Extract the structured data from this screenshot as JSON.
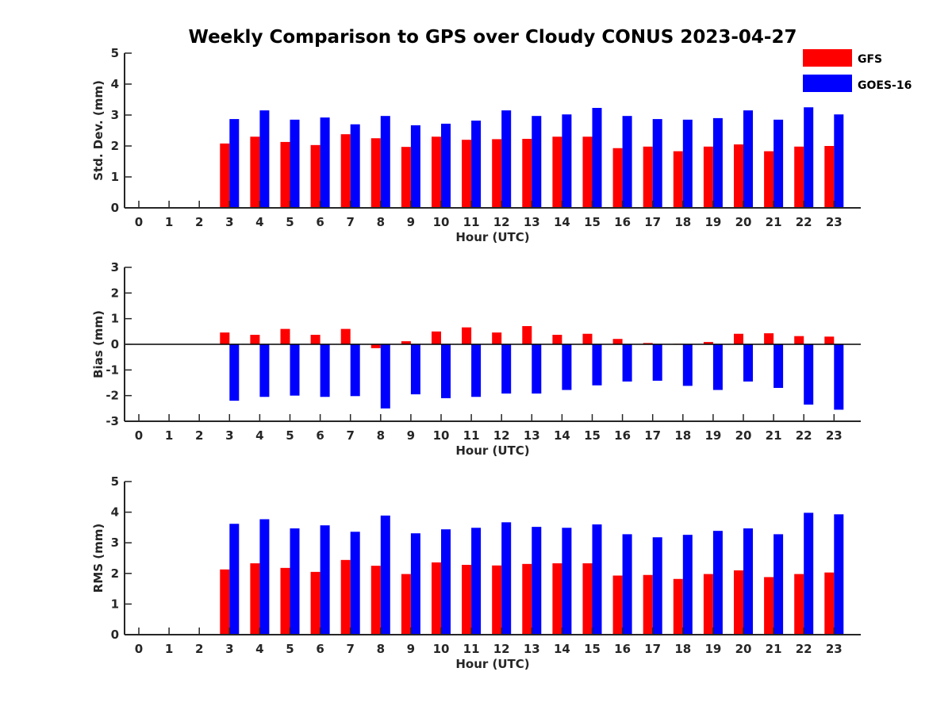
{
  "chart_data": {
    "title": "Weekly Comparison to GPS over Cloudy CONUS 2023-04-27",
    "legend": {
      "position": "top-right",
      "entries": [
        {
          "name": "GFS",
          "color": "#ff0000"
        },
        {
          "name": "GOES-16",
          "color": "#0000ff"
        }
      ]
    },
    "panels": [
      {
        "type": "bar",
        "ylabel": "Std. Dev. (mm)",
        "xlabel": "Hour (UTC)",
        "ylim": [
          0,
          5
        ],
        "yticks": [
          "0",
          "1",
          "2",
          "3",
          "4",
          "5"
        ],
        "categories": [
          "0",
          "1",
          "2",
          "3",
          "4",
          "5",
          "6",
          "7",
          "8",
          "9",
          "10",
          "11",
          "12",
          "13",
          "14",
          "15",
          "16",
          "17",
          "18",
          "19",
          "20",
          "21",
          "22",
          "23"
        ],
        "series": [
          {
            "name": "GFS",
            "color": "#ff0000",
            "values": [
              null,
              null,
              null,
              2.08,
              2.3,
              2.13,
              2.03,
              2.38,
              2.25,
              1.97,
              2.3,
              2.2,
              2.22,
              2.23,
              2.3,
              2.3,
              1.93,
              1.98,
              1.83,
              1.98,
              2.05,
              1.83,
              1.98,
              2.0
            ]
          },
          {
            "name": "GOES-16",
            "color": "#0000ff",
            "values": [
              null,
              null,
              null,
              2.87,
              3.15,
              2.85,
              2.92,
              2.7,
              2.97,
              2.67,
              2.72,
              2.82,
              3.15,
              2.97,
              3.02,
              3.23,
              2.97,
              2.87,
              2.85,
              2.9,
              3.15,
              2.85,
              3.25,
              3.02
            ]
          }
        ]
      },
      {
        "type": "bar",
        "ylabel": "Bias (mm)",
        "xlabel": "Hour (UTC)",
        "ylim": [
          -3,
          3
        ],
        "yticks": [
          "-3",
          "-2",
          "-1",
          "0",
          "1",
          "2",
          "3"
        ],
        "categories": [
          "0",
          "1",
          "2",
          "3",
          "4",
          "5",
          "6",
          "7",
          "8",
          "9",
          "10",
          "11",
          "12",
          "13",
          "14",
          "15",
          "16",
          "17",
          "18",
          "19",
          "20",
          "21",
          "22",
          "23"
        ],
        "series": [
          {
            "name": "GFS",
            "color": "#ff0000",
            "values": [
              null,
              null,
              null,
              0.46,
              0.37,
              0.6,
              0.37,
              0.6,
              -0.15,
              0.12,
              0.5,
              0.66,
              0.46,
              0.71,
              0.37,
              0.41,
              0.21,
              0.05,
              0.02,
              0.09,
              0.41,
              0.43,
              0.32,
              0.3
            ]
          },
          {
            "name": "GOES-16",
            "color": "#0000ff",
            "values": [
              null,
              null,
              null,
              -2.2,
              -2.05,
              -2.0,
              -2.05,
              -2.02,
              -2.5,
              -1.95,
              -2.1,
              -2.05,
              -1.92,
              -1.92,
              -1.78,
              -1.6,
              -1.45,
              -1.42,
              -1.62,
              -1.78,
              -1.45,
              -1.7,
              -2.35,
              -2.55
            ]
          }
        ]
      },
      {
        "type": "bar",
        "ylabel": "RMS (mm)",
        "xlabel": "Hour (UTC)",
        "ylim": [
          0,
          5
        ],
        "yticks": [
          "0",
          "1",
          "2",
          "3",
          "4",
          "5"
        ],
        "categories": [
          "0",
          "1",
          "2",
          "3",
          "4",
          "5",
          "6",
          "7",
          "8",
          "9",
          "10",
          "11",
          "12",
          "13",
          "14",
          "15",
          "16",
          "17",
          "18",
          "19",
          "20",
          "21",
          "22",
          "23"
        ],
        "series": [
          {
            "name": "GFS",
            "color": "#ff0000",
            "values": [
              null,
              null,
              null,
              2.13,
              2.33,
              2.18,
              2.05,
              2.44,
              2.25,
              1.98,
              2.36,
              2.28,
              2.26,
              2.31,
              2.33,
              2.33,
              1.93,
              1.95,
              1.82,
              1.98,
              2.1,
              1.88,
              1.98,
              2.03
            ]
          },
          {
            "name": "GOES-16",
            "color": "#0000ff",
            "values": [
              null,
              null,
              null,
              3.62,
              3.77,
              3.47,
              3.57,
              3.36,
              3.89,
              3.31,
              3.44,
              3.49,
              3.67,
              3.52,
              3.49,
              3.6,
              3.28,
              3.18,
              3.26,
              3.39,
              3.47,
              3.28,
              3.98,
              3.93
            ]
          }
        ]
      }
    ]
  }
}
